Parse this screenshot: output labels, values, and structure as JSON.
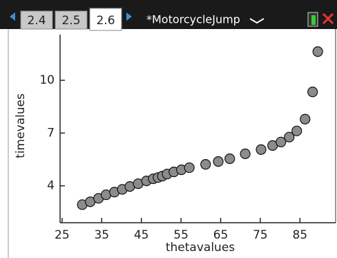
{
  "toolbar": {
    "tabs": [
      "2.4",
      "2.5",
      "2.6"
    ],
    "document": "*MotorcycleJump"
  },
  "chart_data": {
    "type": "scatter",
    "x_label": "thetavalues",
    "y_label": "timevalues",
    "x": [
      30.1,
      32.1,
      34.2,
      36.1,
      38.2,
      40.2,
      42.1,
      44.2,
      46.3,
      48.0,
      49.2,
      50.3,
      51.5,
      53.2,
      55.1,
      57.1,
      61.2,
      64.4,
      67.3,
      71.2,
      75.2,
      78.1,
      80.2,
      82.3,
      84.2,
      86.3,
      88.2,
      89.5
    ],
    "values": [
      2.93,
      3.09,
      3.29,
      3.49,
      3.64,
      3.8,
      3.96,
      4.12,
      4.28,
      4.4,
      4.47,
      4.55,
      4.67,
      4.79,
      4.91,
      5.03,
      5.22,
      5.38,
      5.54,
      5.82,
      6.06,
      6.29,
      6.49,
      6.77,
      7.12,
      7.79,
      9.34,
      11.63
    ],
    "color": "#8c8c8c",
    "xlim": [
      24.5,
      94
    ],
    "ylim": [
      1.9,
      12.6
    ],
    "xticks": [
      25,
      35,
      45,
      55,
      65,
      75,
      85
    ],
    "yticks": [
      4,
      7,
      10
    ]
  }
}
